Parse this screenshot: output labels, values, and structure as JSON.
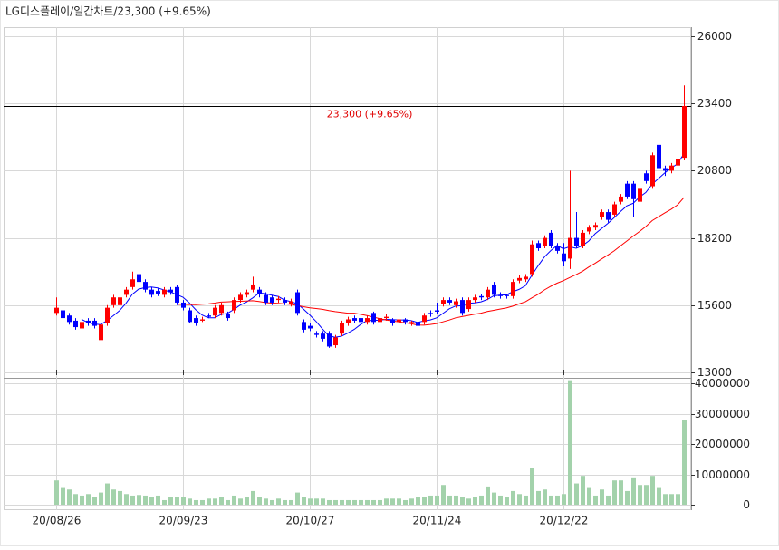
{
  "chart_data": {
    "type": "candlestick",
    "title": "LG디스플레이/일간차트/23,300  (+9.65%)",
    "categories": [
      "20/08/26",
      null,
      null,
      null,
      null,
      null,
      null,
      null,
      null,
      null,
      null,
      null,
      null,
      null,
      null,
      null,
      null,
      null,
      null,
      null,
      "20/09/23",
      null,
      null,
      null,
      null,
      null,
      null,
      null,
      null,
      null,
      null,
      null,
      null,
      null,
      null,
      null,
      null,
      null,
      null,
      null,
      "20/10/27",
      null,
      null,
      null,
      null,
      null,
      null,
      null,
      null,
      null,
      null,
      null,
      null,
      null,
      null,
      null,
      null,
      null,
      null,
      null,
      "20/11/24",
      null,
      null,
      null,
      null,
      null,
      null,
      null,
      null,
      null,
      null,
      null,
      null,
      null,
      null,
      null,
      null,
      null,
      null,
      null,
      "20/12/22",
      null,
      null,
      null,
      null,
      null,
      null,
      null,
      null,
      null,
      null,
      null,
      null,
      null,
      null,
      null,
      null,
      null,
      null,
      null
    ],
    "open": [
      15300,
      15400,
      15200,
      15000,
      14700,
      15000,
      15000,
      14250,
      14900,
      15600,
      15600,
      16000,
      16300,
      16800,
      16500,
      16200,
      16150,
      16000,
      16200,
      16300,
      15700,
      15400,
      15100,
      15000,
      15200,
      15200,
      15300,
      15250,
      15400,
      15800,
      16000,
      16200,
      16200,
      16000,
      15900,
      15800,
      15800,
      15650,
      16100,
      14950,
      14800,
      14500,
      14500,
      14500,
      14050,
      14500,
      14900,
      15100,
      15100,
      14950,
      15300,
      14950,
      15100,
      15050,
      14950,
      15050,
      14900,
      14950,
      14950,
      15300,
      15400,
      15650,
      15800,
      15600,
      15800,
      15450,
      15800,
      15950,
      15900,
      16400,
      16000,
      16000,
      15950,
      16550,
      16600,
      16800,
      18000,
      17900,
      18400,
      17900,
      17600,
      17400,
      18200,
      17900,
      18450,
      18600,
      19000,
      19200,
      19100,
      19600,
      20300,
      20300,
      19600,
      20700,
      20200,
      21800,
      20900,
      20800,
      21000,
      21300
    ],
    "high": [
      15900,
      15500,
      15300,
      15100,
      15050,
      15100,
      15100,
      14950,
      15600,
      16000,
      16000,
      16300,
      16900,
      17100,
      16600,
      16300,
      16250,
      16300,
      16300,
      16400,
      15800,
      15500,
      15200,
      15150,
      15300,
      15600,
      15700,
      15350,
      15900,
      16100,
      16200,
      16700,
      16300,
      16100,
      16000,
      15950,
      15900,
      15850,
      16200,
      15050,
      14900,
      14600,
      14600,
      14600,
      14450,
      15000,
      15150,
      15200,
      15150,
      15200,
      15350,
      15200,
      15250,
      15100,
      15150,
      15100,
      15000,
      15050,
      15300,
      15400,
      15700,
      15900,
      15900,
      15850,
      15900,
      15900,
      16000,
      16050,
      16300,
      16500,
      16100,
      16050,
      16600,
      16750,
      16800,
      18100,
      18100,
      18300,
      18500,
      18000,
      18000,
      20800,
      19200,
      18500,
      18700,
      18800,
      19300,
      19300,
      19600,
      19900,
      20400,
      20400,
      20200,
      20800,
      21500,
      22100,
      21000,
      21100,
      21400,
      24100
    ],
    "low": [
      15200,
      15000,
      14850,
      14650,
      14600,
      14800,
      14700,
      14150,
      14800,
      15500,
      15500,
      15900,
      16200,
      16400,
      16100,
      15900,
      15950,
      15900,
      16000,
      15600,
      15400,
      14900,
      14800,
      14950,
      15100,
      15100,
      15200,
      15000,
      15300,
      15700,
      15900,
      16100,
      15900,
      15600,
      15600,
      15700,
      15600,
      15550,
      15200,
      14550,
      14600,
      14350,
      14200,
      13950,
      13950,
      14400,
      14800,
      14900,
      14850,
      14850,
      14850,
      14850,
      15000,
      14800,
      14900,
      14850,
      14800,
      14700,
      14850,
      15150,
      15250,
      15550,
      15600,
      15500,
      15200,
      15350,
      15700,
      15800,
      15800,
      15900,
      15850,
      15850,
      15850,
      16450,
      16500,
      16700,
      17700,
      17800,
      17800,
      17600,
      17100,
      17000,
      17800,
      17800,
      18350,
      18500,
      18900,
      18800,
      19000,
      19500,
      19700,
      19000,
      19500,
      20300,
      20100,
      20800,
      20600,
      20700,
      20900,
      21200
    ],
    "close": [
      15500,
      15100,
      14950,
      14750,
      14950,
      14900,
      14800,
      14850,
      15500,
      15900,
      15900,
      16200,
      16600,
      16500,
      16200,
      16000,
      16050,
      16200,
      16100,
      15700,
      15500,
      14950,
      14900,
      15050,
      15150,
      15500,
      15600,
      15100,
      15800,
      16000,
      16100,
      16400,
      16050,
      15700,
      15700,
      15850,
      15700,
      15750,
      15300,
      14650,
      14700,
      14450,
      14300,
      14000,
      14350,
      14900,
      15050,
      15000,
      14950,
      15100,
      14950,
      15100,
      15150,
      14900,
      15050,
      14950,
      14950,
      14800,
      15200,
      15250,
      15350,
      15800,
      15700,
      15750,
      15300,
      15800,
      15900,
      15900,
      16200,
      16000,
      15950,
      15950,
      16500,
      16650,
      16700,
      17950,
      17800,
      18200,
      17900,
      17700,
      17300,
      18200,
      17900,
      18400,
      18600,
      18700,
      19200,
      18900,
      19500,
      19800,
      19800,
      19700,
      20100,
      20400,
      21400,
      20900,
      20800,
      21000,
      21250,
      23300
    ],
    "up_color": "#ff0000",
    "down_color": "#0000ff",
    "series": [
      {
        "color": "#0000ff",
        "values": [
          null,
          null,
          null,
          null,
          15050,
          14930,
          14870,
          14850,
          15000,
          15190,
          15390,
          15670,
          16020,
          16220,
          16280,
          16300,
          16270,
          16190,
          16110,
          16010,
          15910,
          15690,
          15430,
          15220,
          15110,
          15110,
          15240,
          15280,
          15430,
          15600,
          15720,
          15880,
          16070,
          16050,
          15990,
          15940,
          15800,
          15740,
          15660,
          15450,
          15220,
          14970,
          14680,
          14420,
          14360,
          14400,
          14520,
          14660,
          14850,
          15000,
          15010,
          15020,
          15050,
          15040,
          15030,
          15030,
          15000,
          14930,
          14990,
          15030,
          15110,
          15280,
          15460,
          15570,
          15580,
          15670,
          15690,
          15730,
          15820,
          15960,
          15990,
          16000,
          16120,
          16210,
          16350,
          16750,
          17120,
          17460,
          17710,
          17910,
          17780,
          17860,
          17800,
          17900,
          18080,
          18360,
          18560,
          18760,
          18980,
          19220,
          19440,
          19540,
          19780,
          19960,
          20280,
          20500,
          20720,
          20900,
          21070,
          21450
        ]
      },
      {
        "color": "#ff0000",
        "values": [
          null,
          null,
          null,
          null,
          null,
          null,
          null,
          null,
          null,
          null,
          null,
          null,
          null,
          null,
          null,
          null,
          null,
          null,
          null,
          15633,
          15630,
          15625,
          15620,
          15640,
          15650,
          15680,
          15720,
          15730,
          15745,
          15750,
          15760,
          15770,
          15740,
          15700,
          15680,
          15670,
          15650,
          15630,
          15590,
          15540,
          15500,
          15470,
          15440,
          15390,
          15350,
          15320,
          15290,
          15290,
          15245,
          15200,
          15140,
          15080,
          15030,
          14990,
          14960,
          14915,
          14880,
          14830,
          14825,
          14855,
          14890,
          14955,
          15025,
          15110,
          15160,
          15205,
          15250,
          15290,
          15355,
          15400,
          15450,
          15490,
          15560,
          15650,
          15730,
          15880,
          16020,
          16190,
          16330,
          16450,
          16550,
          16670,
          16780,
          16910,
          17075,
          17220,
          17385,
          17535,
          17700,
          17890,
          18080,
          18270,
          18450,
          18640,
          18870,
          19020,
          19170,
          19310,
          19480,
          19760
        ]
      }
    ],
    "last_price": {
      "value": 23300,
      "label": "23,300 (+9.65%)"
    },
    "ylim": [
      13000,
      26000
    ],
    "yticks": [
      13000,
      15600,
      18200,
      20800,
      23400,
      26000
    ],
    "grid": true,
    "volume": {
      "color": "#a3d2ab",
      "values": [
        8000000,
        5500000,
        5000000,
        3500000,
        3000000,
        3500000,
        2500000,
        4000000,
        7000000,
        5000000,
        4500000,
        3500000,
        3000000,
        3200000,
        3000000,
        2500000,
        3000000,
        1500000,
        2500000,
        2500000,
        2500000,
        2000000,
        1500000,
        1500000,
        2000000,
        2000000,
        2500000,
        1500000,
        3000000,
        2000000,
        2500000,
        4500000,
        2500000,
        2000000,
        1500000,
        2000000,
        1500000,
        1500000,
        4000000,
        2500000,
        2000000,
        2000000,
        2000000,
        1500000,
        1500000,
        1500000,
        1500000,
        1500000,
        1500000,
        1500000,
        1500000,
        1500000,
        2000000,
        2000000,
        2000000,
        1500000,
        2000000,
        2500000,
        2500000,
        3000000,
        3000000,
        6500000,
        3000000,
        3000000,
        2500000,
        2000000,
        2500000,
        3000000,
        6000000,
        4000000,
        3000000,
        2500000,
        4500000,
        3500000,
        3000000,
        12000000,
        4500000,
        5000000,
        3000000,
        3000000,
        3500000,
        41000000,
        7000000,
        9500000,
        5500000,
        3000000,
        5000000,
        3000000,
        8000000,
        8000000,
        4500000,
        9000000,
        6500000,
        6500000,
        9500000,
        5500000,
        3500000,
        3500000,
        3500000,
        28000000
      ],
      "ylim": [
        0,
        40000000
      ],
      "yticks": [
        0,
        10000000,
        20000000,
        30000000,
        40000000
      ]
    }
  }
}
